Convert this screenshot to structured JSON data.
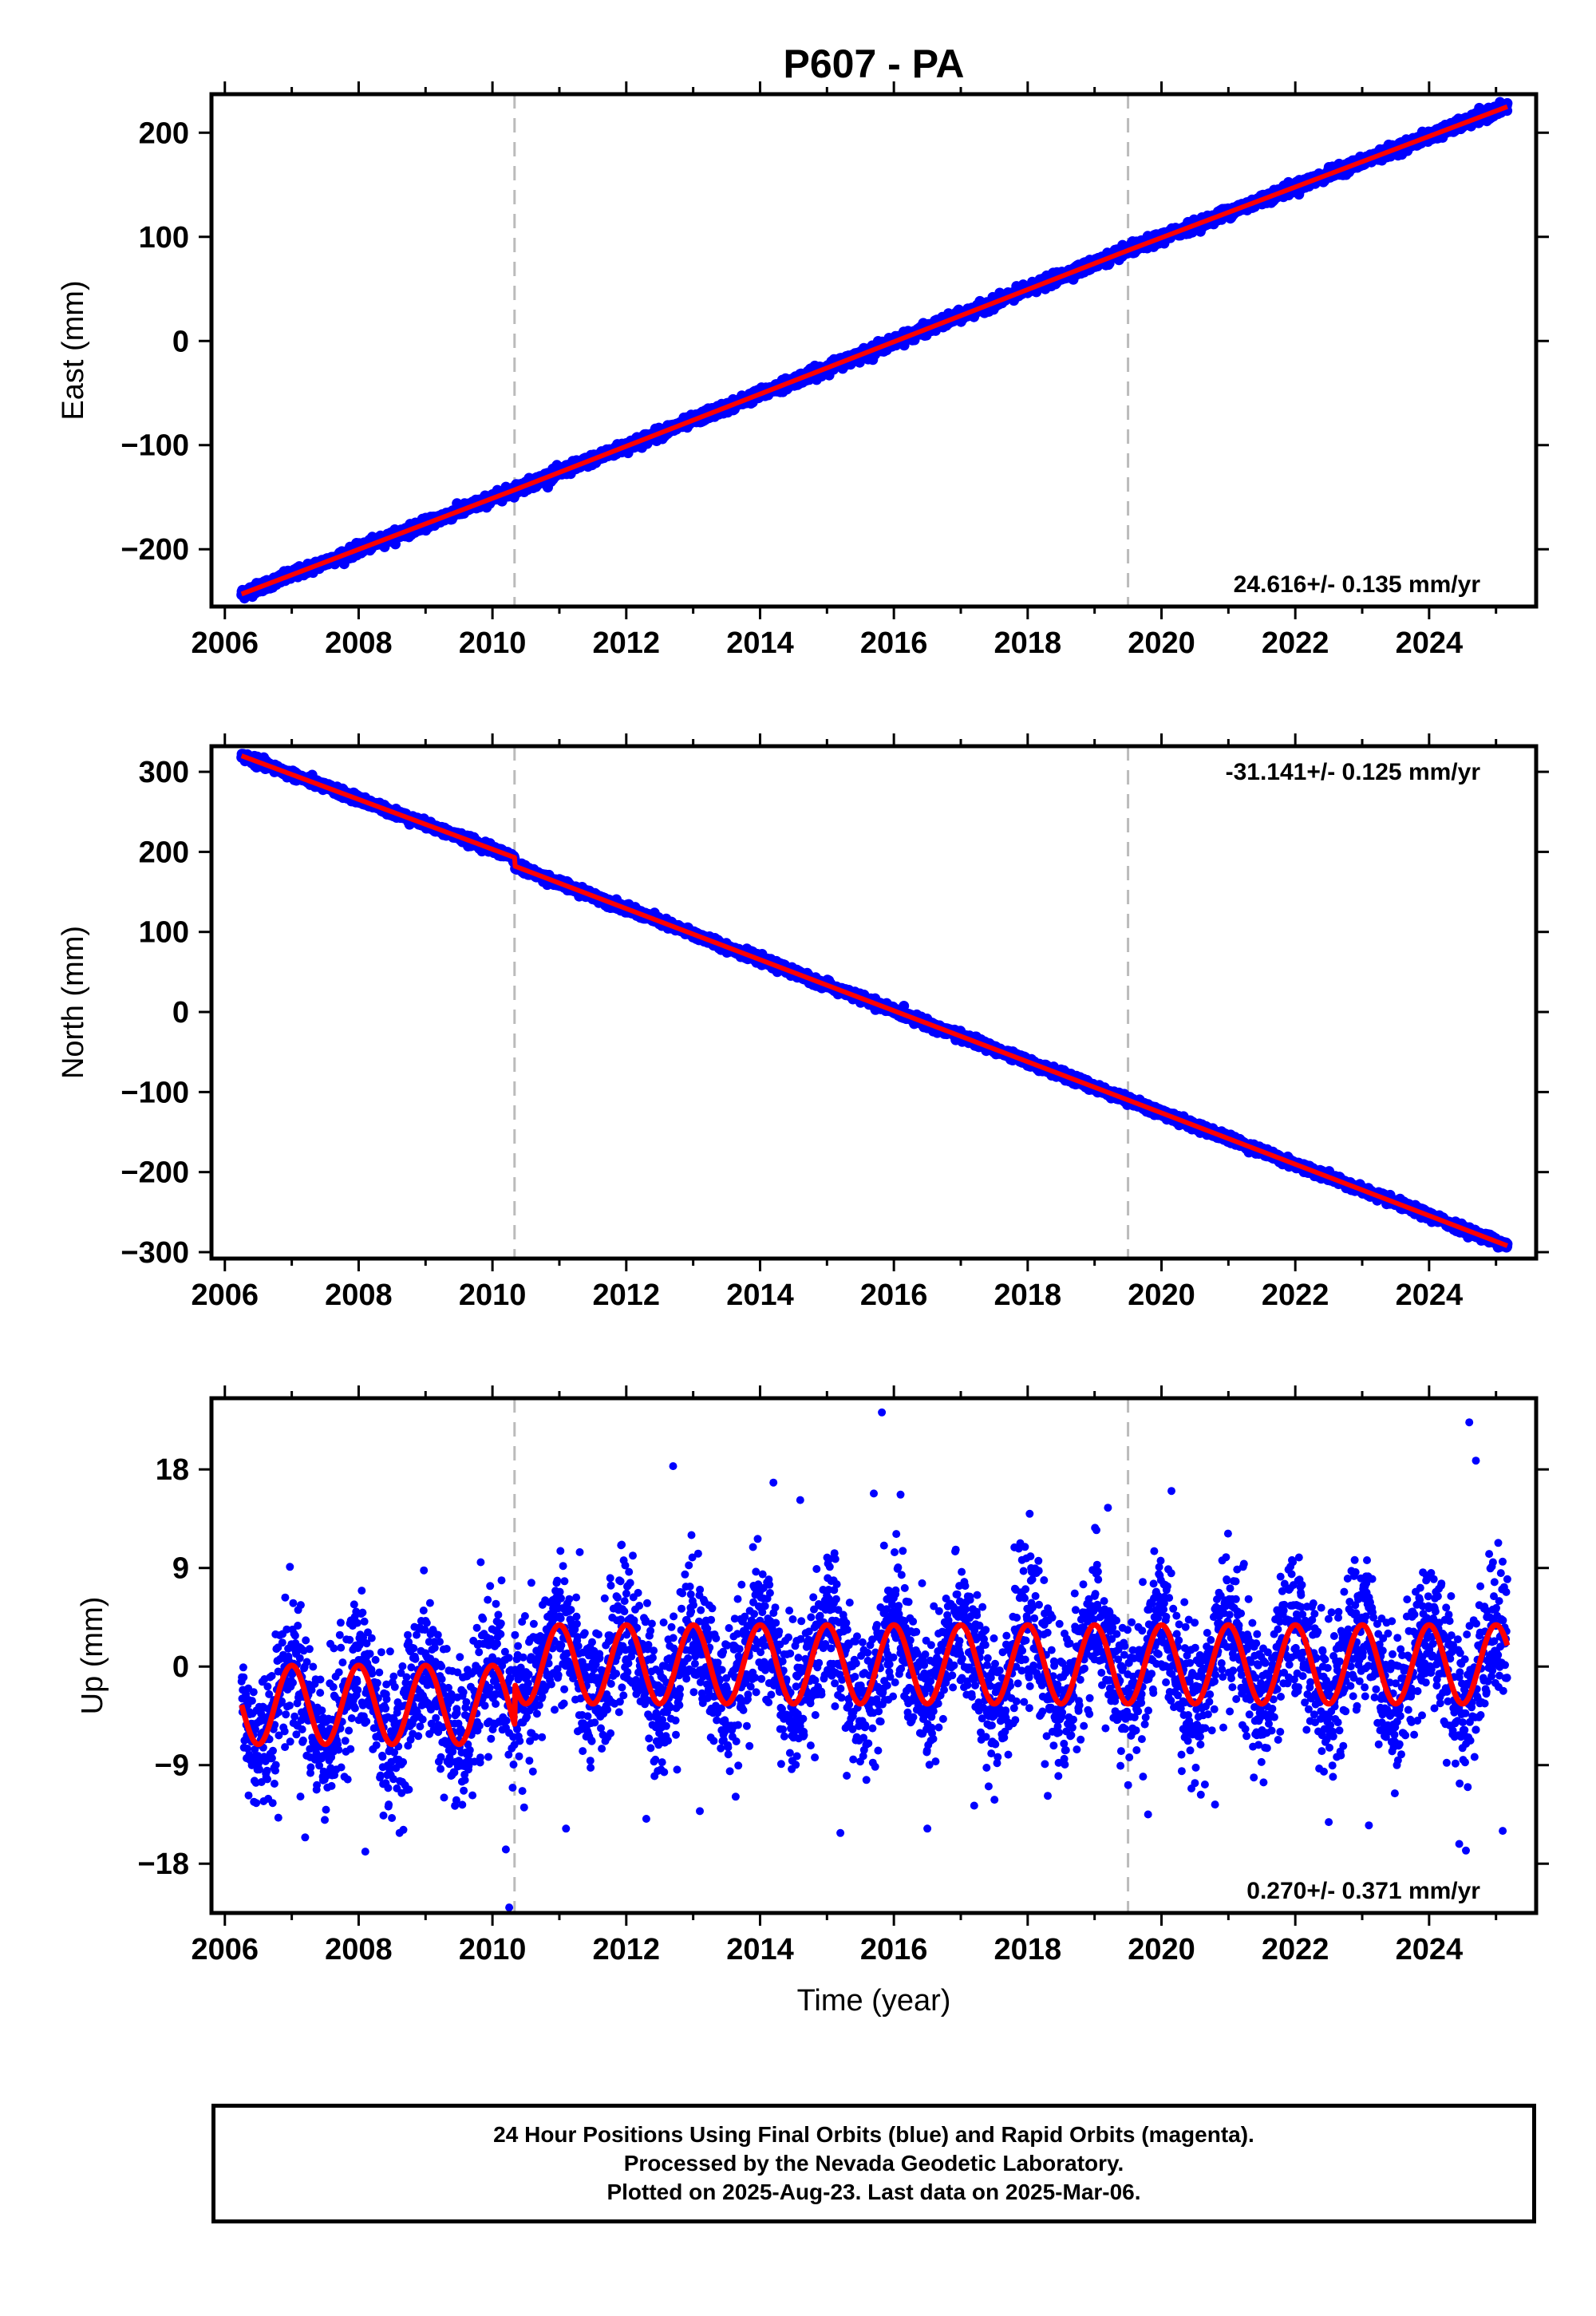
{
  "title": "P607 - PA",
  "chart_data": [
    {
      "type": "scatter",
      "name": "east",
      "ylabel": "East (mm)",
      "xlabel": "",
      "xlim": [
        2005.8,
        2025.6
      ],
      "ylim": [
        -255,
        237
      ],
      "xticks": [
        2006,
        2008,
        2010,
        2012,
        2014,
        2016,
        2018,
        2020,
        2022,
        2024
      ],
      "yticks": [
        -200,
        -100,
        0,
        100,
        200
      ],
      "xtick_labels": [
        "2006",
        "2008",
        "2010",
        "2012",
        "2014",
        "2016",
        "2018",
        "2020",
        "2022",
        "2024"
      ],
      "ytick_labels": [
        "−200",
        "−100",
        "0",
        "100",
        "200"
      ],
      "annotation": "24.616+/- 0.135 mm/yr",
      "annotation_position": "bottom-right",
      "vlines": [
        2010.33,
        2019.5
      ],
      "data_start": 2006.25,
      "data_end": 2025.17,
      "trend": [
        [
          2006.25,
          -243
        ],
        [
          2010.33,
          -143
        ],
        [
          2019.5,
          87
        ],
        [
          2025.17,
          225
        ]
      ],
      "offsets": [],
      "noise_mm": 2.5,
      "seasonal": [],
      "outliers": []
    },
    {
      "type": "scatter",
      "name": "north",
      "ylabel": "North (mm)",
      "xlabel": "",
      "xlim": [
        2005.8,
        2025.6
      ],
      "ylim": [
        -308,
        332
      ],
      "xticks": [
        2006,
        2008,
        2010,
        2012,
        2014,
        2016,
        2018,
        2020,
        2022,
        2024
      ],
      "yticks": [
        -300,
        -200,
        -100,
        0,
        100,
        200,
        300
      ],
      "xtick_labels": [
        "2006",
        "2008",
        "2010",
        "2012",
        "2014",
        "2016",
        "2018",
        "2020",
        "2022",
        "2024"
      ],
      "ytick_labels": [
        "−300",
        "−200",
        "−100",
        "0",
        "100",
        "200",
        "300"
      ],
      "annotation": "-31.141+/- 0.125 mm/yr",
      "annotation_position": "top-right",
      "vlines": [
        2010.33,
        2019.5
      ],
      "data_start": 2006.25,
      "data_end": 2025.17,
      "trend": [
        [
          2006.25,
          320
        ],
        [
          2010.33,
          193
        ],
        [
          2010.34,
          182
        ],
        [
          2019.5,
          -110
        ],
        [
          2025.17,
          -292
        ]
      ],
      "offsets": [],
      "noise_mm": 2.5,
      "seasonal": [],
      "outliers": []
    },
    {
      "type": "scatter",
      "name": "up",
      "ylabel": "Up (mm)",
      "xlabel": "Time (year)",
      "xlim": [
        2005.8,
        2025.6
      ],
      "ylim": [
        -22.5,
        24.5
      ],
      "xticks": [
        2006,
        2008,
        2010,
        2012,
        2014,
        2016,
        2018,
        2020,
        2022,
        2024
      ],
      "yticks": [
        -18,
        -9,
        0,
        9,
        18
      ],
      "xtick_labels": [
        "2006",
        "2008",
        "2010",
        "2012",
        "2014",
        "2016",
        "2018",
        "2020",
        "2022",
        "2024"
      ],
      "ytick_labels": [
        "−18",
        "−9",
        "0",
        "9",
        "18"
      ],
      "annotation": "0.270+/- 0.371 mm/yr",
      "annotation_position": "bottom-right",
      "vlines": [
        2010.33,
        2019.5
      ],
      "data_start": 2006.25,
      "data_end": 2025.17,
      "trend": [
        [
          2006.25,
          -3.5
        ],
        [
          2010.33,
          -3.5
        ],
        [
          2010.34,
          0.2
        ],
        [
          2019.5,
          0.2
        ],
        [
          2025.17,
          0.2
        ]
      ],
      "offsets": [],
      "noise_mm": 3.2,
      "seasonal": [
        {
          "amp": 3.6,
          "phase": 0.75
        }
      ],
      "outliers": [
        [
          2010.25,
          -22
        ],
        [
          2015.82,
          23.2
        ],
        [
          2024.6,
          22.3
        ],
        [
          2024.7,
          18.8
        ],
        [
          2012.7,
          18.3
        ],
        [
          2014.2,
          16.8
        ],
        [
          2015.7,
          15.8
        ],
        [
          2016.1,
          15.7
        ],
        [
          2019.2,
          14.5
        ],
        [
          2014.6,
          15.2
        ],
        [
          2010.2,
          -16.7
        ],
        [
          2008.1,
          -16.9
        ],
        [
          2024.55,
          -16.8
        ],
        [
          2024.45,
          -16.2
        ],
        [
          2015.2,
          -15.2
        ],
        [
          2016.5,
          -14.8
        ],
        [
          2006.8,
          -13.8
        ],
        [
          2007.2,
          -15.6
        ],
        [
          2011.1,
          -14.8
        ],
        [
          2012.3,
          -13.9
        ],
        [
          2017.2,
          -12.7
        ],
        [
          2019.8,
          -13.5
        ],
        [
          2020.8,
          -12.6
        ],
        [
          2022.5,
          -14.2
        ],
        [
          2023.1,
          -14.5
        ],
        [
          2025.1,
          -15.0
        ],
        [
          2013.1,
          -13.2
        ],
        [
          2018.3,
          -11.8
        ]
      ]
    }
  ],
  "footer": {
    "line1": "24 Hour Positions Using Final Orbits (blue) and Rapid Orbits (magenta).",
    "line2": "Processed by the Nevada Geodetic Laboratory.",
    "line3": "Plotted on 2025-Aug-23. Last data on 2025-Mar-06."
  },
  "colors": {
    "points": "#0000ff",
    "model": "#ff0000",
    "vline": "#bbbbbb",
    "frame": "#000000"
  }
}
